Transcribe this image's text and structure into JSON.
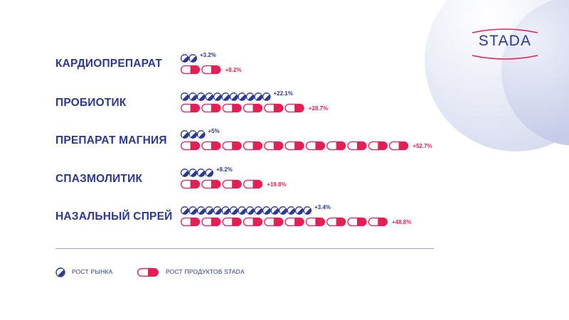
{
  "brand": {
    "name": "STADA"
  },
  "colors": {
    "market": "#2b3990",
    "stada": "#e31f54",
    "deco": "#c5cce8"
  },
  "chart_data": {
    "type": "bar",
    "categories": [
      "КАРДИОПРЕПАРАТ",
      "ПРОБИОТИК",
      "ПРЕПАРАТ МАГНИЯ",
      "СПАЗМОЛИТИК",
      "НАЗАЛЬНЫЙ СПРЕЙ"
    ],
    "series": [
      {
        "name": "РОСТ РЫНКА",
        "values": [
          3.2,
          22.1,
          5,
          8.2,
          3.4
        ],
        "labels": [
          "+3.2%",
          "+22.1%",
          "+5%",
          "+8.2%",
          "+3.4%"
        ],
        "icons_shown": [
          2,
          11,
          3,
          4,
          16
        ]
      },
      {
        "name": "РОСТ ПРОДУКТОВ STADA",
        "values": [
          8.2,
          28.7,
          52.7,
          19.8,
          48.8
        ],
        "labels": [
          "+8.2%",
          "+28.7%",
          "+52.7%",
          "+19.8%",
          "+48.8%"
        ],
        "icons_shown": [
          2,
          6,
          11,
          4,
          10
        ]
      }
    ],
    "legend": [
      "РОСТ РЫНКА",
      "РОСТ ПРОДУКТОВ STADA"
    ],
    "legend_position": "bottom-left"
  }
}
